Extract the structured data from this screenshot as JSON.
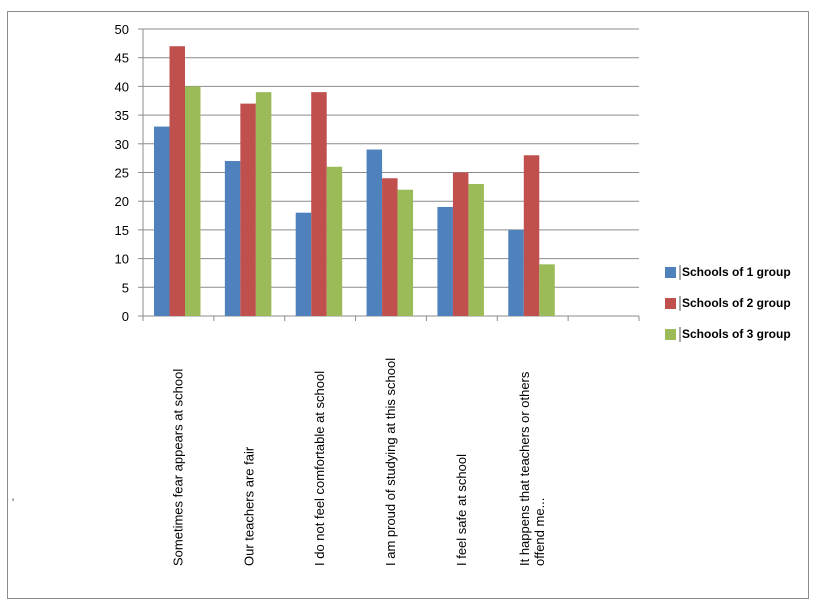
{
  "chart_data": {
    "type": "bar",
    "title": "",
    "xlabel": "",
    "ylabel": "",
    "ylim": [
      0,
      50
    ],
    "yticks": [
      0,
      5,
      10,
      15,
      20,
      25,
      30,
      35,
      40,
      45,
      50
    ],
    "grid": true,
    "legend_position": "right",
    "categories": [
      [
        "Sometimes fear appears at school"
      ],
      [
        "Our teachers are fair"
      ],
      [
        "I do not feel comfortable at school"
      ],
      [
        "I am proud of studying at this school"
      ],
      [
        "I feel safe at school"
      ],
      [
        "It happens that teachers or others",
        "offend me..."
      ],
      [
        ""
      ]
    ],
    "series": [
      {
        "name": "Schools of 1 group",
        "color": "#4f81bd",
        "values": [
          33,
          27,
          18,
          29,
          19,
          15,
          null
        ]
      },
      {
        "name": "Schools of 2 group",
        "color": "#c0504d",
        "values": [
          47,
          37,
          39,
          24,
          25,
          28,
          null
        ]
      },
      {
        "name": "Schools of 3 group",
        "color": "#9bbb59",
        "values": [
          40,
          39,
          26,
          22,
          23,
          9,
          null
        ]
      }
    ]
  },
  "stray_mark": "'"
}
